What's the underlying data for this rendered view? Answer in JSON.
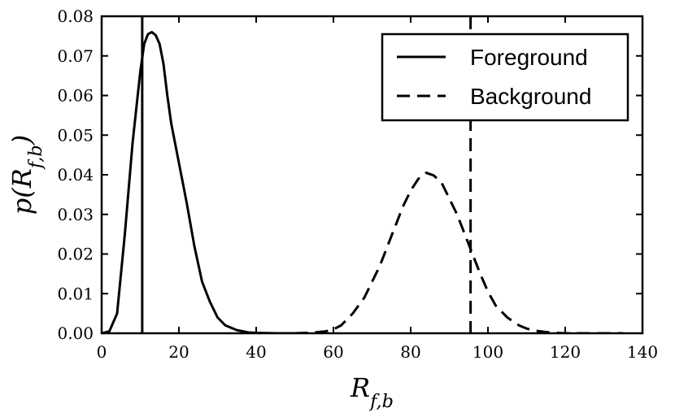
{
  "chart_data": {
    "type": "line",
    "xlabel": "R_{f,b}",
    "ylabel": "p(R_{f,b})",
    "xlim": [
      0,
      140
    ],
    "ylim": [
      0,
      0.08
    ],
    "x_ticks": [
      "0",
      "20",
      "40",
      "60",
      "80",
      "100",
      "120",
      "140"
    ],
    "y_ticks": [
      "0.00",
      "0.01",
      "0.02",
      "0.03",
      "0.04",
      "0.05",
      "0.06",
      "0.07",
      "0.08"
    ],
    "grid": false,
    "legend": "top-right",
    "series": [
      {
        "name": "Foreground",
        "style": "solid",
        "color": "#000000",
        "x": [
          0,
          2,
          4,
          6,
          8,
          10,
          11,
          12,
          13,
          14,
          15,
          16,
          17,
          18,
          20,
          22,
          24,
          26,
          28,
          30,
          32,
          35,
          38,
          40,
          45,
          50
        ],
        "y": [
          0,
          0.0005,
          0.005,
          0.025,
          0.048,
          0.066,
          0.073,
          0.0755,
          0.076,
          0.0752,
          0.073,
          0.068,
          0.06,
          0.053,
          0.043,
          0.033,
          0.022,
          0.013,
          0.008,
          0.004,
          0.002,
          0.0008,
          0.0002,
          0.0001,
          0,
          0
        ]
      },
      {
        "name": "Background",
        "style": "dashed",
        "color": "#000000",
        "x": [
          50,
          55,
          58,
          60,
          62,
          65,
          68,
          70,
          72,
          74,
          76,
          78,
          80,
          82,
          84,
          86,
          88,
          90,
          92,
          94,
          96,
          98,
          100,
          102,
          105,
          108,
          110,
          112,
          115,
          118,
          120,
          125,
          130,
          135
        ],
        "y": [
          0,
          0.0002,
          0.0005,
          0.001,
          0.002,
          0.005,
          0.009,
          0.013,
          0.017,
          0.022,
          0.027,
          0.032,
          0.036,
          0.039,
          0.0405,
          0.0398,
          0.038,
          0.034,
          0.03,
          0.025,
          0.02,
          0.015,
          0.0105,
          0.007,
          0.004,
          0.002,
          0.0012,
          0.0007,
          0.0003,
          0.0001,
          0,
          0,
          0,
          0
        ]
      }
    ],
    "vlines": [
      {
        "x": 10.5,
        "style": "solid"
      },
      {
        "x": 95.5,
        "style": "dashed"
      }
    ]
  }
}
